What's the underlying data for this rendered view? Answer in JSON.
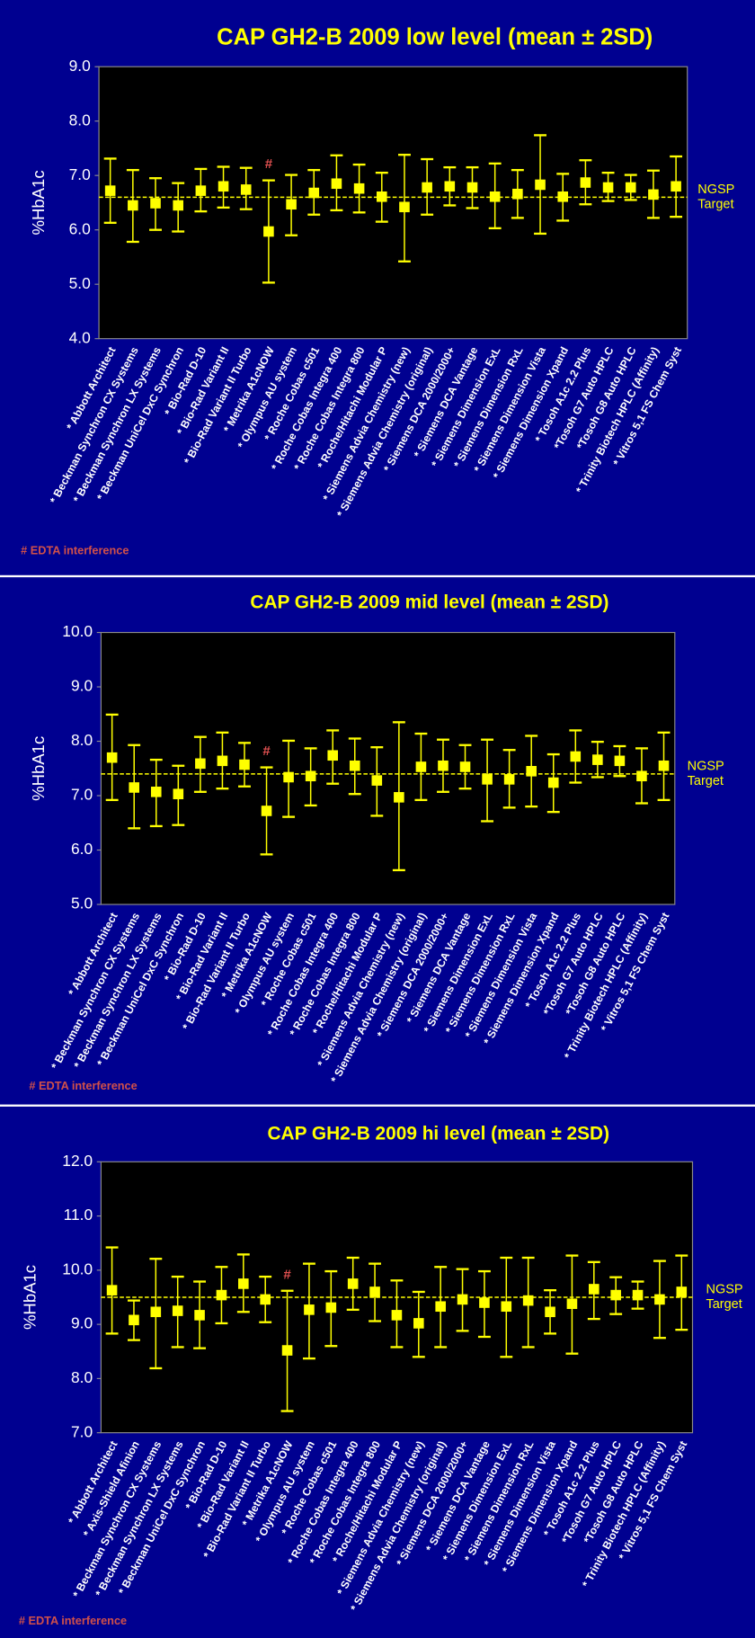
{
  "chart_data": [
    {
      "type": "errorbar",
      "title": "CAP GH2-B 2009 low level (mean ± 2SD)",
      "y_label": "%HbA1c",
      "color": "#ffff00",
      "categories": [
        "* Abbott Architect",
        "* Beckman Synchron CX Systems",
        "* Beckman Synchron LX Systems",
        "* Beckman UniCel DxC Synchron",
        "* Bio-Rad D-10",
        "* Bio-Rad Variant II",
        "* Bio-Rad Variant II Turbo",
        "* Metrika A1cNOW",
        "* Olympus AU system",
        "* Roche Cobas c501",
        "* Roche Cobas Integra 400",
        "* Roche Cobas Integra 800",
        "* Roche/Hitachi Modular P",
        "* Siemens Advia Chemistry (new)",
        "* Siemens Advia Chemistry (original)",
        "* Siemens DCA 2000/2000+",
        "* Siemens DCA Vantage",
        "* Siemens Dimension ExL",
        "* Siemens Dimension RxL",
        "* Siemens Dimension Vista",
        "* Siemens Dimension Xpand",
        "* Tosoh A1c 2.2 Plus",
        "*Tosoh G7 Auto HPLC",
        "*Tosoh G8 Auto HPLC",
        "* Trinity Biotech HPLC (Affinity)",
        "* Vitros 5,1 FS Chem Syst"
      ],
      "values": [
        6.72,
        6.45,
        6.49,
        6.45,
        6.72,
        6.8,
        6.74,
        5.97,
        6.47,
        6.68,
        6.85,
        6.76,
        6.61,
        6.42,
        6.78,
        6.8,
        6.78,
        6.61,
        6.66,
        6.83,
        6.61,
        6.87,
        6.78,
        6.78,
        6.65,
        6.8
      ],
      "lower": [
        6.13,
        5.78,
        6.0,
        5.97,
        6.34,
        6.41,
        6.38,
        5.03,
        5.9,
        6.28,
        6.36,
        6.32,
        6.15,
        5.42,
        6.28,
        6.45,
        6.4,
        6.03,
        6.22,
        5.93,
        6.17,
        6.47,
        6.53,
        6.55,
        6.22,
        6.24
      ],
      "upper": [
        7.31,
        7.1,
        6.95,
        6.86,
        7.12,
        7.16,
        7.14,
        6.91,
        7.01,
        7.1,
        7.37,
        7.2,
        7.05,
        7.38,
        7.3,
        7.15,
        7.15,
        7.22,
        7.1,
        7.74,
        7.03,
        7.28,
        7.05,
        7.01,
        7.09,
        7.35
      ],
      "ylim": [
        4,
        9
      ],
      "yticks": [
        {
          "value": 4,
          "label": "4.0"
        },
        {
          "value": 5,
          "label": "5.0"
        },
        {
          "value": 6,
          "label": "6.0"
        },
        {
          "value": 7,
          "label": "7.0"
        },
        {
          "value": 8,
          "label": "8.0"
        },
        {
          "value": 9,
          "label": "9.0"
        }
      ],
      "target": 6.6,
      "target_label": [
        "NGSP",
        "Target"
      ],
      "annotation": {
        "text": "#",
        "category": "* Metrika A1cNOW"
      },
      "footnote": "# EDTA interference"
    },
    {
      "type": "errorbar",
      "title": "CAP GH2-B 2009 mid level (mean ± 2SD)",
      "y_label": "%HbA1c",
      "color": "#ffff00",
      "categories": [
        "* Abbott Architect",
        "* Beckman Synchron CX Systems",
        "* Beckman Synchron LX Systems",
        "* Beckman UniCel DxC Synchron",
        "* Bio-Rad D-10",
        "* Bio-Rad Variant II",
        "* Bio-Rad Variant II Turbo",
        "* Metrika A1cNOW",
        "* Olympus AU system",
        "* Roche Cobas c501",
        "* Roche Cobas Integra 400",
        "* Roche Cobas Integra 800",
        "* Roche/Hitachi Modular P",
        "* Siemens Advia Chemistry (new)",
        "* Siemens Advia Chemistry (original)",
        "* Siemens DCA 2000/2000+",
        "* Siemens DCA Vantage",
        "* Siemens Dimension ExL",
        "* Siemens Dimension RxL",
        "* Siemens Dimension Vista",
        "* Siemens Dimension Xpand",
        "* Tosoh A1c 2.2 Plus",
        "*Tosoh G7 Auto HPLC",
        "*Tosoh G8 Auto HPLC",
        "* Trinity Biotech HPLC (Affinity)",
        "* Vitros 5,1 FS Chem Syst"
      ],
      "values": [
        7.7,
        7.15,
        7.07,
        7.03,
        7.59,
        7.64,
        7.57,
        6.72,
        7.34,
        7.36,
        7.74,
        7.55,
        7.28,
        6.97,
        7.53,
        7.55,
        7.53,
        7.3,
        7.3,
        7.45,
        7.24,
        7.72,
        7.66,
        7.64,
        7.36,
        7.55
      ],
      "lower": [
        6.92,
        6.4,
        6.44,
        6.46,
        7.07,
        7.13,
        7.17,
        5.92,
        6.61,
        6.82,
        7.22,
        7.03,
        6.63,
        5.63,
        6.92,
        7.07,
        7.13,
        6.53,
        6.78,
        6.8,
        6.7,
        7.24,
        7.34,
        7.36,
        6.86,
        6.92
      ],
      "upper": [
        8.49,
        7.93,
        7.66,
        7.55,
        8.08,
        8.16,
        7.97,
        7.52,
        8.01,
        7.87,
        8.2,
        8.05,
        7.89,
        8.35,
        8.14,
        8.03,
        7.93,
        8.03,
        7.84,
        8.1,
        7.76,
        8.2,
        7.99,
        7.91,
        7.87,
        8.16
      ],
      "ylim": [
        5,
        10
      ],
      "yticks": [
        {
          "value": 5,
          "label": "5.0"
        },
        {
          "value": 6,
          "label": "6.0"
        },
        {
          "value": 7,
          "label": "7.0"
        },
        {
          "value": 8,
          "label": "8.0"
        },
        {
          "value": 9,
          "label": "9.0"
        },
        {
          "value": 10,
          "label": "10.0"
        }
      ],
      "target": 7.4,
      "target_label": [
        "NGSP",
        "Target"
      ],
      "annotation": {
        "text": "#",
        "category": "* Metrika A1cNOW"
      },
      "footnote": "# EDTA interference"
    },
    {
      "type": "errorbar",
      "title": "CAP GH2-B 2009 hi level (mean ± 2SD)",
      "y_label": "%HbA1c",
      "color": "#ffff00",
      "categories": [
        "* Abbott Architect",
        "* Axis-Shield Afinion",
        "* Beckman Synchron CX Systems",
        "* Beckman Synchron LX Systems",
        "* Beckman UniCel DxC Synchron",
        "* Bio-Rad D-10",
        "* Bio-Rad Variant II",
        "* Bio-Rad Variant II Turbo",
        "* Metrika A1cNOW",
        "* Olympus AU system",
        "* Roche Cobas c501",
        "* Roche Cobas Integra 400",
        "* Roche Cobas Integra 800",
        "* Roche/Hitachi Modular P",
        "* Siemens Advia Chemistry (new)",
        "* Siemens Advia Chemistry (original)",
        "* Siemens DCA 2000/2000+",
        "* Siemens DCA Vantage",
        "* Siemens Dimension ExL",
        "* Siemens Dimension RxL",
        "* Siemens Dimension Vista",
        "* Siemens Dimension Xpand",
        "* Tosoh A1c 2.2 Plus",
        "*Tosoh G7 Auto HPLC",
        "*Tosoh G8 Auto HPLC",
        "* Trinity Biotech HPLC (Affinity)",
        "* Vitros 5,1 FS Chem Syst"
      ],
      "values": [
        9.63,
        9.08,
        9.23,
        9.25,
        9.17,
        9.54,
        9.75,
        9.46,
        8.52,
        9.27,
        9.31,
        9.75,
        9.6,
        9.17,
        9.02,
        9.33,
        9.46,
        9.4,
        9.33,
        9.44,
        9.23,
        9.38,
        9.65,
        9.54,
        9.54,
        9.46,
        9.6
      ],
      "lower": [
        8.83,
        8.71,
        8.19,
        8.58,
        8.56,
        9.02,
        9.23,
        9.04,
        7.4,
        8.37,
        8.6,
        9.27,
        9.06,
        8.58,
        8.4,
        8.58,
        8.88,
        8.77,
        8.4,
        8.58,
        8.83,
        8.46,
        9.1,
        9.19,
        9.29,
        8.75,
        8.9
      ],
      "upper": [
        10.42,
        9.44,
        10.21,
        9.88,
        9.79,
        10.06,
        10.29,
        9.88,
        9.62,
        10.12,
        9.98,
        10.23,
        10.12,
        9.81,
        9.6,
        10.06,
        10.02,
        9.98,
        10.23,
        10.23,
        9.63,
        10.27,
        10.15,
        9.87,
        9.79,
        10.17,
        10.27
      ],
      "ylim": [
        7,
        12
      ],
      "yticks": [
        {
          "value": 7,
          "label": "7.0"
        },
        {
          "value": 8,
          "label": "8.0"
        },
        {
          "value": 9,
          "label": "9.0"
        },
        {
          "value": 10,
          "label": "10.0"
        },
        {
          "value": 11,
          "label": "11.0"
        },
        {
          "value": 12,
          "label": "12.0"
        }
      ],
      "target": 9.5,
      "target_label": [
        "NGSP",
        "Target"
      ],
      "annotation": {
        "text": "#",
        "category": "* Metrika A1cNOW"
      },
      "footnote": "# EDTA interference"
    }
  ]
}
